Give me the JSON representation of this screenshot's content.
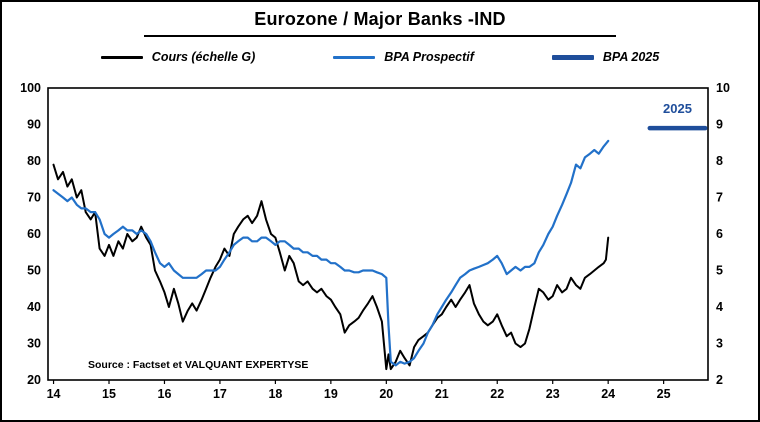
{
  "title": "Eurozone / Major Banks -IND",
  "legend": [
    {
      "label": "Cours (échelle G)",
      "color": "#000000",
      "thick": false
    },
    {
      "label": "BPA Prospectif",
      "color": "#2271C9",
      "thick": false
    },
    {
      "label": "BPA 2025",
      "color": "#1F4E9B",
      "thick": true
    }
  ],
  "source": "Source : Factset et VALQUANT EXPERTYSE",
  "annotation_2025": "2025",
  "colors": {
    "cours": "#000000",
    "bpa_prospectif": "#2271C9",
    "bpa_2025": "#1F4E9B",
    "right_axis_labels": "#2271C9",
    "plot_border": "#000000"
  },
  "chart_data": {
    "type": "line",
    "title": "Eurozone / Major Banks -IND",
    "x_ticks": [
      14,
      15,
      16,
      17,
      18,
      19,
      20,
      21,
      22,
      23,
      24,
      25
    ],
    "x_range": [
      13.9,
      25.8
    ],
    "left_axis": {
      "label": "Cours (échelle G)",
      "range": [
        20,
        100
      ],
      "ticks": [
        100,
        90,
        80,
        70,
        60,
        50,
        40,
        30,
        20
      ]
    },
    "right_axis": {
      "label": "BPA",
      "range": [
        2,
        10
      ],
      "ticks": [
        10,
        9,
        8,
        7,
        6,
        5,
        4,
        3,
        2
      ],
      "color": "#2271C9"
    },
    "grid": false,
    "legend_position": "top",
    "series": [
      {
        "name": "Cours (échelle G)",
        "axis": "left",
        "color": "#000000",
        "width": 2,
        "points": [
          [
            14.0,
            79
          ],
          [
            14.08,
            75
          ],
          [
            14.17,
            77
          ],
          [
            14.25,
            73
          ],
          [
            14.33,
            75
          ],
          [
            14.42,
            70
          ],
          [
            14.5,
            72
          ],
          [
            14.58,
            66
          ],
          [
            14.67,
            64
          ],
          [
            14.75,
            66
          ],
          [
            14.83,
            56
          ],
          [
            14.92,
            54
          ],
          [
            15.0,
            57
          ],
          [
            15.08,
            54
          ],
          [
            15.17,
            58
          ],
          [
            15.25,
            56
          ],
          [
            15.33,
            60
          ],
          [
            15.42,
            58
          ],
          [
            15.5,
            59
          ],
          [
            15.58,
            62
          ],
          [
            15.67,
            59
          ],
          [
            15.75,
            57
          ],
          [
            15.83,
            50
          ],
          [
            15.92,
            47
          ],
          [
            16.0,
            44
          ],
          [
            16.08,
            40
          ],
          [
            16.17,
            45
          ],
          [
            16.25,
            41
          ],
          [
            16.33,
            36
          ],
          [
            16.42,
            39
          ],
          [
            16.5,
            41
          ],
          [
            16.58,
            39
          ],
          [
            16.67,
            42
          ],
          [
            16.75,
            45
          ],
          [
            16.83,
            48
          ],
          [
            16.92,
            51
          ],
          [
            17.0,
            53
          ],
          [
            17.08,
            56
          ],
          [
            17.17,
            54
          ],
          [
            17.25,
            60
          ],
          [
            17.33,
            62
          ],
          [
            17.42,
            64
          ],
          [
            17.5,
            65
          ],
          [
            17.58,
            63
          ],
          [
            17.67,
            65
          ],
          [
            17.75,
            69
          ],
          [
            17.83,
            64
          ],
          [
            17.92,
            60
          ],
          [
            18.0,
            59
          ],
          [
            18.08,
            55
          ],
          [
            18.17,
            50
          ],
          [
            18.25,
            54
          ],
          [
            18.33,
            52
          ],
          [
            18.42,
            47
          ],
          [
            18.5,
            46
          ],
          [
            18.58,
            47
          ],
          [
            18.67,
            45
          ],
          [
            18.75,
            44
          ],
          [
            18.83,
            45
          ],
          [
            18.92,
            43
          ],
          [
            19.0,
            42
          ],
          [
            19.08,
            40
          ],
          [
            19.17,
            38
          ],
          [
            19.25,
            33
          ],
          [
            19.33,
            35
          ],
          [
            19.42,
            36
          ],
          [
            19.5,
            37
          ],
          [
            19.58,
            39
          ],
          [
            19.67,
            41
          ],
          [
            19.75,
            43
          ],
          [
            19.83,
            40
          ],
          [
            19.92,
            36
          ],
          [
            20.0,
            23
          ],
          [
            20.04,
            27
          ],
          [
            20.08,
            23
          ],
          [
            20.17,
            25
          ],
          [
            20.25,
            28
          ],
          [
            20.33,
            26
          ],
          [
            20.42,
            24
          ],
          [
            20.5,
            29
          ],
          [
            20.58,
            31
          ],
          [
            20.67,
            32
          ],
          [
            20.75,
            33
          ],
          [
            20.83,
            35
          ],
          [
            20.92,
            37
          ],
          [
            21.0,
            38
          ],
          [
            21.08,
            40
          ],
          [
            21.17,
            42
          ],
          [
            21.25,
            40
          ],
          [
            21.33,
            42
          ],
          [
            21.42,
            44
          ],
          [
            21.5,
            46
          ],
          [
            21.58,
            41
          ],
          [
            21.67,
            38
          ],
          [
            21.75,
            36
          ],
          [
            21.83,
            35
          ],
          [
            21.92,
            36
          ],
          [
            22.0,
            38
          ],
          [
            22.08,
            35
          ],
          [
            22.17,
            32
          ],
          [
            22.25,
            33
          ],
          [
            22.33,
            30
          ],
          [
            22.42,
            29
          ],
          [
            22.5,
            30
          ],
          [
            22.58,
            34
          ],
          [
            22.67,
            40
          ],
          [
            22.75,
            45
          ],
          [
            22.83,
            44
          ],
          [
            22.92,
            42
          ],
          [
            23.0,
            43
          ],
          [
            23.08,
            46
          ],
          [
            23.17,
            44
          ],
          [
            23.25,
            45
          ],
          [
            23.33,
            48
          ],
          [
            23.42,
            46
          ],
          [
            23.5,
            45
          ],
          [
            23.58,
            48
          ],
          [
            23.67,
            49
          ],
          [
            23.75,
            50
          ],
          [
            23.83,
            51
          ],
          [
            23.92,
            52
          ],
          [
            23.96,
            53
          ],
          [
            24.0,
            59
          ]
        ]
      },
      {
        "name": "BPA Prospectif",
        "axis": "right",
        "color": "#2271C9",
        "width": 2.2,
        "points": [
          [
            14.0,
            7.2
          ],
          [
            14.17,
            7.0
          ],
          [
            14.25,
            6.9
          ],
          [
            14.33,
            7.0
          ],
          [
            14.42,
            6.8
          ],
          [
            14.5,
            6.7
          ],
          [
            14.58,
            6.7
          ],
          [
            14.67,
            6.6
          ],
          [
            14.75,
            6.6
          ],
          [
            14.83,
            6.4
          ],
          [
            14.92,
            6.0
          ],
          [
            15.0,
            5.9
          ],
          [
            15.08,
            6.0
          ],
          [
            15.17,
            6.1
          ],
          [
            15.25,
            6.2
          ],
          [
            15.33,
            6.1
          ],
          [
            15.42,
            6.1
          ],
          [
            15.5,
            6.0
          ],
          [
            15.58,
            6.1
          ],
          [
            15.67,
            6.0
          ],
          [
            15.75,
            5.8
          ],
          [
            15.83,
            5.5
          ],
          [
            15.92,
            5.2
          ],
          [
            16.0,
            5.1
          ],
          [
            16.08,
            5.2
          ],
          [
            16.17,
            5.0
          ],
          [
            16.25,
            4.9
          ],
          [
            16.33,
            4.8
          ],
          [
            16.42,
            4.8
          ],
          [
            16.5,
            4.8
          ],
          [
            16.58,
            4.8
          ],
          [
            16.67,
            4.9
          ],
          [
            16.75,
            5.0
          ],
          [
            16.83,
            5.0
          ],
          [
            16.92,
            5.0
          ],
          [
            17.0,
            5.1
          ],
          [
            17.08,
            5.3
          ],
          [
            17.17,
            5.5
          ],
          [
            17.25,
            5.7
          ],
          [
            17.33,
            5.8
          ],
          [
            17.42,
            5.9
          ],
          [
            17.5,
            5.9
          ],
          [
            17.58,
            5.8
          ],
          [
            17.67,
            5.8
          ],
          [
            17.75,
            5.9
          ],
          [
            17.83,
            5.9
          ],
          [
            17.92,
            5.8
          ],
          [
            18.0,
            5.7
          ],
          [
            18.08,
            5.8
          ],
          [
            18.17,
            5.8
          ],
          [
            18.25,
            5.7
          ],
          [
            18.33,
            5.6
          ],
          [
            18.42,
            5.6
          ],
          [
            18.5,
            5.5
          ],
          [
            18.58,
            5.5
          ],
          [
            18.67,
            5.4
          ],
          [
            18.75,
            5.4
          ],
          [
            18.83,
            5.3
          ],
          [
            18.92,
            5.3
          ],
          [
            19.0,
            5.2
          ],
          [
            19.08,
            5.2
          ],
          [
            19.17,
            5.1
          ],
          [
            19.25,
            5.0
          ],
          [
            19.33,
            5.0
          ],
          [
            19.42,
            4.95
          ],
          [
            19.5,
            4.95
          ],
          [
            19.58,
            5.0
          ],
          [
            19.67,
            5.0
          ],
          [
            19.75,
            5.0
          ],
          [
            19.83,
            4.95
          ],
          [
            19.92,
            4.9
          ],
          [
            20.0,
            4.8
          ],
          [
            20.04,
            3.5
          ],
          [
            20.08,
            2.5
          ],
          [
            20.17,
            2.4
          ],
          [
            20.25,
            2.5
          ],
          [
            20.33,
            2.45
          ],
          [
            20.42,
            2.5
          ],
          [
            20.5,
            2.6
          ],
          [
            20.58,
            2.8
          ],
          [
            20.67,
            3.0
          ],
          [
            20.75,
            3.3
          ],
          [
            20.83,
            3.5
          ],
          [
            20.92,
            3.8
          ],
          [
            21.0,
            4.0
          ],
          [
            21.08,
            4.2
          ],
          [
            21.17,
            4.4
          ],
          [
            21.25,
            4.6
          ],
          [
            21.33,
            4.8
          ],
          [
            21.42,
            4.9
          ],
          [
            21.5,
            5.0
          ],
          [
            21.58,
            5.05
          ],
          [
            21.67,
            5.1
          ],
          [
            21.75,
            5.15
          ],
          [
            21.83,
            5.2
          ],
          [
            21.92,
            5.3
          ],
          [
            22.0,
            5.4
          ],
          [
            22.08,
            5.2
          ],
          [
            22.17,
            4.9
          ],
          [
            22.25,
            5.0
          ],
          [
            22.33,
            5.1
          ],
          [
            22.42,
            5.0
          ],
          [
            22.5,
            5.1
          ],
          [
            22.58,
            5.1
          ],
          [
            22.67,
            5.2
          ],
          [
            22.75,
            5.5
          ],
          [
            22.83,
            5.7
          ],
          [
            22.92,
            6.0
          ],
          [
            23.0,
            6.2
          ],
          [
            23.08,
            6.5
          ],
          [
            23.17,
            6.8
          ],
          [
            23.25,
            7.1
          ],
          [
            23.33,
            7.4
          ],
          [
            23.42,
            7.9
          ],
          [
            23.5,
            7.8
          ],
          [
            23.58,
            8.1
          ],
          [
            23.67,
            8.2
          ],
          [
            23.75,
            8.3
          ],
          [
            23.83,
            8.2
          ],
          [
            23.92,
            8.4
          ],
          [
            24.0,
            8.55
          ]
        ]
      },
      {
        "name": "BPA 2025",
        "axis": "right",
        "color": "#1F4E9B",
        "width": 4.5,
        "annotation": "2025",
        "points": [
          [
            24.75,
            8.9
          ],
          [
            25.75,
            8.9
          ]
        ]
      }
    ]
  }
}
